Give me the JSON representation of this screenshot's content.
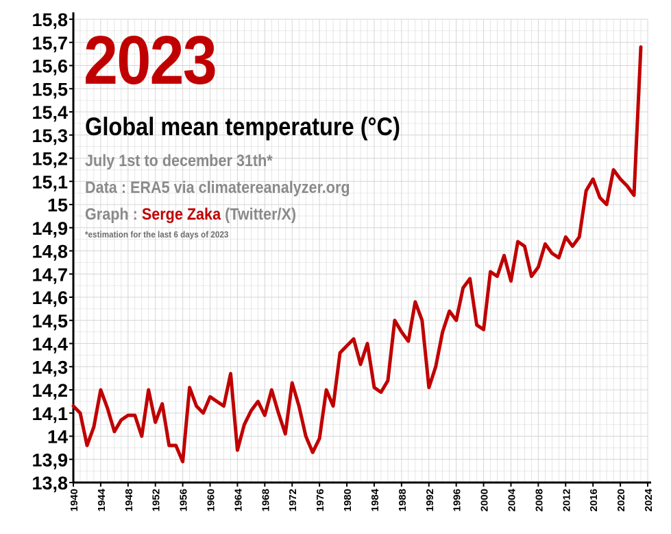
{
  "colors": {
    "line": "#c00000",
    "accent": "#c00000",
    "grid": "#d4d4d4",
    "subtext": "#8a8a8a"
  },
  "annotations": {
    "year": "2023",
    "line1_prefix": "Graph : ",
    "author": "Serge Zaka",
    "line1_suffix": " (Twitter/X)"
  },
  "chart_data": {
    "type": "line",
    "title": "Global mean temperature (°C)",
    "subtitle": "July 1st to december 31th*",
    "source": "Data : ERA5 via climatereanalyzer.org",
    "footnote": "*estimation for the last 6 days of 2023",
    "xlabel": "",
    "ylabel": "",
    "xlim": [
      1940,
      2024
    ],
    "ylim": [
      13.8,
      15.8
    ],
    "grid": true,
    "yticks": [
      "13,8",
      "13,9",
      "14",
      "14,1",
      "14,2",
      "14,3",
      "14,4",
      "14,5",
      "14,6",
      "14,7",
      "14,8",
      "14,9",
      "15",
      "15,1",
      "15,2",
      "15,3",
      "15,4",
      "15,5",
      "15,6",
      "15,7",
      "15,8"
    ],
    "xticks": [
      "1940",
      "1944",
      "1948",
      "1952",
      "1956",
      "1960",
      "1964",
      "1968",
      "1972",
      "1976",
      "1980",
      "1984",
      "1988",
      "1992",
      "1996",
      "2000",
      "2004",
      "2008",
      "2012",
      "2016",
      "2020",
      "2024"
    ],
    "series": [
      {
        "name": "Global mean temperature",
        "x": [
          1940,
          1941,
          1942,
          1943,
          1944,
          1945,
          1946,
          1947,
          1948,
          1949,
          1950,
          1951,
          1952,
          1953,
          1954,
          1955,
          1956,
          1957,
          1958,
          1959,
          1960,
          1961,
          1962,
          1963,
          1964,
          1965,
          1966,
          1967,
          1968,
          1969,
          1970,
          1971,
          1972,
          1973,
          1974,
          1975,
          1976,
          1977,
          1978,
          1979,
          1980,
          1981,
          1982,
          1983,
          1984,
          1985,
          1986,
          1987,
          1988,
          1989,
          1990,
          1991,
          1992,
          1993,
          1994,
          1995,
          1996,
          1997,
          1998,
          1999,
          2000,
          2001,
          2002,
          2003,
          2004,
          2005,
          2006,
          2007,
          2008,
          2009,
          2010,
          2011,
          2012,
          2013,
          2014,
          2015,
          2016,
          2017,
          2018,
          2019,
          2020,
          2021,
          2022,
          2023
        ],
        "values": [
          14.13,
          14.1,
          13.96,
          14.04,
          14.2,
          14.12,
          14.02,
          14.07,
          14.09,
          14.09,
          14.0,
          14.2,
          14.06,
          14.14,
          13.96,
          13.96,
          13.89,
          14.21,
          14.13,
          14.1,
          14.17,
          14.15,
          14.13,
          14.27,
          13.94,
          14.05,
          14.11,
          14.15,
          14.09,
          14.2,
          14.1,
          14.01,
          14.23,
          14.13,
          14.0,
          13.93,
          13.99,
          14.2,
          14.13,
          14.36,
          14.39,
          14.42,
          14.31,
          14.4,
          14.21,
          14.19,
          14.24,
          14.5,
          14.45,
          14.41,
          14.58,
          14.5,
          14.21,
          14.3,
          14.45,
          14.54,
          14.5,
          14.64,
          14.68,
          14.48,
          14.46,
          14.71,
          14.69,
          14.78,
          14.67,
          14.84,
          14.82,
          14.69,
          14.73,
          14.83,
          14.79,
          14.77,
          14.86,
          14.82,
          14.86,
          15.06,
          15.11,
          15.03,
          15.0,
          15.15,
          15.11,
          15.08,
          15.04,
          15.68
        ]
      }
    ]
  }
}
